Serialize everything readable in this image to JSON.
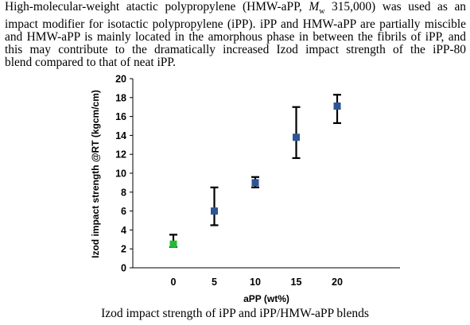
{
  "abstract": {
    "line1_a": "High-molecular-weight atactic polypropylene (HMW-aPP, ",
    "line1_mw": "M",
    "line1_w": "w",
    "line1_b": " 315,000) was used as an",
    "line2": "impact modifier for isotactic polypropylene (iPP). iPP and HMW-aPP are partially miscible",
    "line3": "and HMW-aPP is mainly located in the amorphous phase in between the fibrils of iPP, and",
    "line4": "this may contribute to the dramatically increased Izod impact strength of the iPP-80",
    "line5": "blend compared to that of neat iPP."
  },
  "caption": "Izod impact strength of iPP and iPP/HMW-aPP blends",
  "chart_data": {
    "type": "scatter",
    "xlabel": "aPP (wt%)",
    "ylabel": "Izod impact strength @RT (kgcm/cm)",
    "ylim": [
      0,
      20
    ],
    "y_ticks": [
      0,
      2,
      4,
      6,
      8,
      10,
      12,
      14,
      16,
      18,
      20
    ],
    "x_ticks": [
      0,
      5,
      10,
      15,
      20
    ],
    "grid": false,
    "legend": "none",
    "points": [
      {
        "x": 0,
        "y": 2.5,
        "err_low": 2.2,
        "err_high": 3.5,
        "color": "#22bb33"
      },
      {
        "x": 5,
        "y": 6.0,
        "err_low": 4.5,
        "err_high": 8.5,
        "color": "#2e5597"
      },
      {
        "x": 10,
        "y": 9.0,
        "err_low": 8.5,
        "err_high": 9.6,
        "color": "#2e5597"
      },
      {
        "x": 15,
        "y": 13.8,
        "err_low": 11.6,
        "err_high": 17.0,
        "color": "#2e5597"
      },
      {
        "x": 20,
        "y": 17.1,
        "err_low": 15.3,
        "err_high": 18.3,
        "color": "#2e5597"
      }
    ]
  }
}
